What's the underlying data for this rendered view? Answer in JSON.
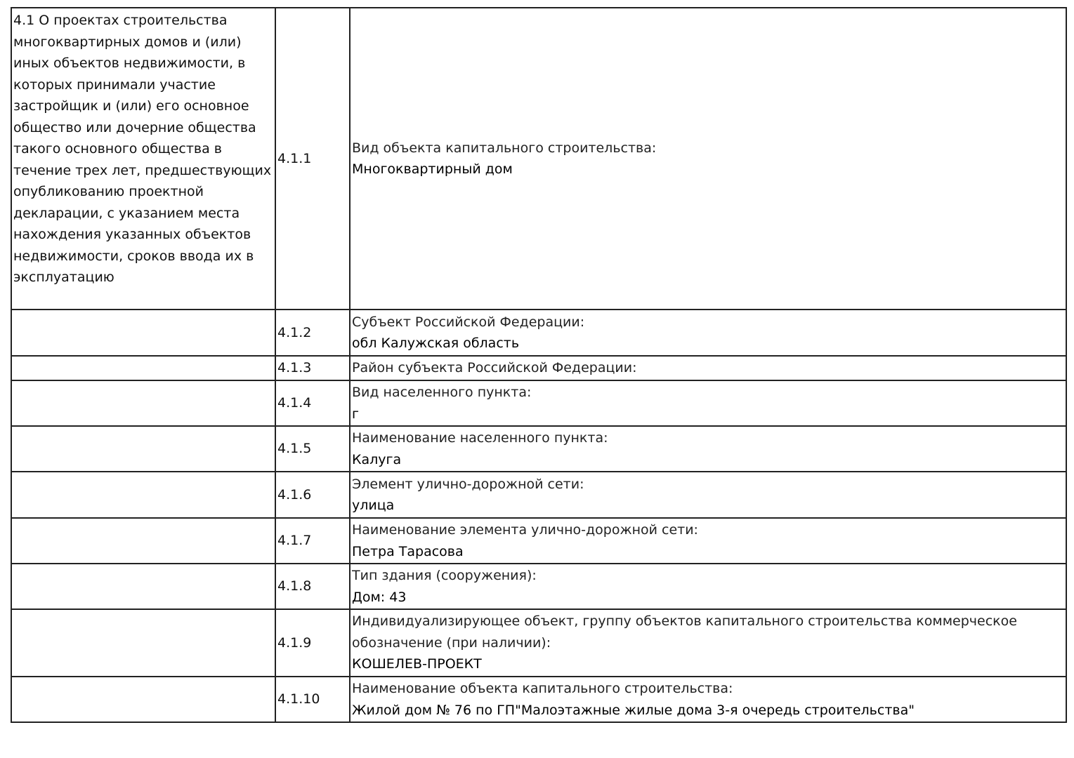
{
  "section": {
    "title": "4.1 О проектах строительства многоквартирных домов и (или) иных объектов недвижимости, в которых принимали участие застройщик и (или) его основное общество или дочерние общества такого основного общества в течение трех лет, предшествующих опубликованию проектной декларации, с указанием места нахождения указанных объектов недвижимости, сроков ввода их в эксплуатацию"
  },
  "rows": [
    {
      "num": "4.1.1",
      "label": "Вид объекта капитального строительства:",
      "value": "Многоквартирный дом"
    },
    {
      "num": "4.1.2",
      "label": "Субъект Российской Федерации:",
      "value": "обл Калужская область"
    },
    {
      "num": "4.1.3",
      "label": "Район субъекта Российской Федерации:",
      "value": ""
    },
    {
      "num": "4.1.4",
      "label": "Вид населенного пункта:",
      "value": "г"
    },
    {
      "num": "4.1.5",
      "label": "Наименование населенного пункта:",
      "value": "Калуга"
    },
    {
      "num": "4.1.6",
      "label": "Элемент улично-дорожной сети:",
      "value": "улица"
    },
    {
      "num": "4.1.7",
      "label": "Наименование элемента улично-дорожной сети:",
      "value": "Петра Тарасова"
    },
    {
      "num": "4.1.8",
      "label": "Тип здания (сооружения):",
      "value": "Дом: 43"
    },
    {
      "num": "4.1.9",
      "label": "Индивидуализирующее объект, группу объектов капитального строительства коммерческое обозначение (при наличии):",
      "value": "КОШЕЛЕВ-ПРОЕКТ"
    },
    {
      "num": "4.1.10",
      "label": "Наименование объекта капитального строительства:",
      "value": "Жилой дом № 76 по ГП\"Малоэтажные жилые дома 3-я очередь строительства\""
    }
  ]
}
